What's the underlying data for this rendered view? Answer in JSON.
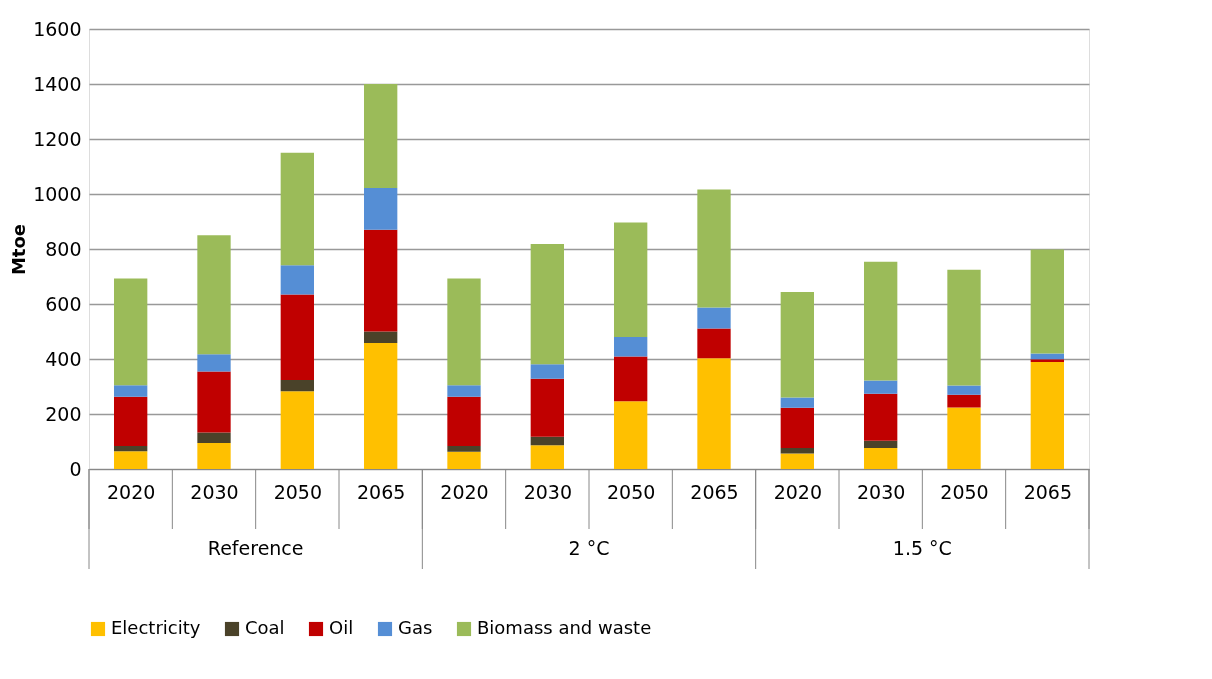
{
  "chart_data": {
    "type": "bar",
    "stacked": true,
    "ylabel": "Mtoe",
    "categories": [
      "2020",
      "2030",
      "2050",
      "2065",
      "2020",
      "2030",
      "2050",
      "2065",
      "2020",
      "2030",
      "2050",
      "2065"
    ],
    "annotations": [
      "Reference",
      "2 °C",
      "1.5 °C"
    ],
    "series": [
      {
        "name": "Electricity",
        "color": "#ffc000",
        "values": [
          65,
          95,
          283,
          458,
          63,
          86,
          246,
          403,
          56,
          76,
          224,
          389
        ]
      },
      {
        "name": "Coal",
        "color": "#4a4229",
        "values": [
          19,
          38,
          41,
          42,
          21,
          31,
          null,
          0,
          20,
          27,
          0,
          0
        ]
      },
      {
        "name": "Oil",
        "color": "#c00000",
        "values": [
          179,
          222,
          311,
          370,
          179,
          211,
          163,
          108,
          147,
          171,
          46,
          10
        ]
      },
      {
        "name": "Gas",
        "color": "#558ed5",
        "values": [
          42,
          62,
          106,
          152,
          42,
          53,
          71,
          76,
          37,
          48,
          34,
          21
        ]
      },
      {
        "name": "Biomass and waste",
        "color": "#9bbb59",
        "values": [
          388,
          433,
          409,
          378,
          388,
          437,
          416,
          429,
          384,
          432,
          421,
          378
        ]
      }
    ],
    "ylim": [
      0,
      1600
    ],
    "yticks": [
      0,
      200,
      400,
      600,
      800,
      1000,
      1200,
      1400,
      1600
    ],
    "grid": "y",
    "legend": "bottom"
  }
}
